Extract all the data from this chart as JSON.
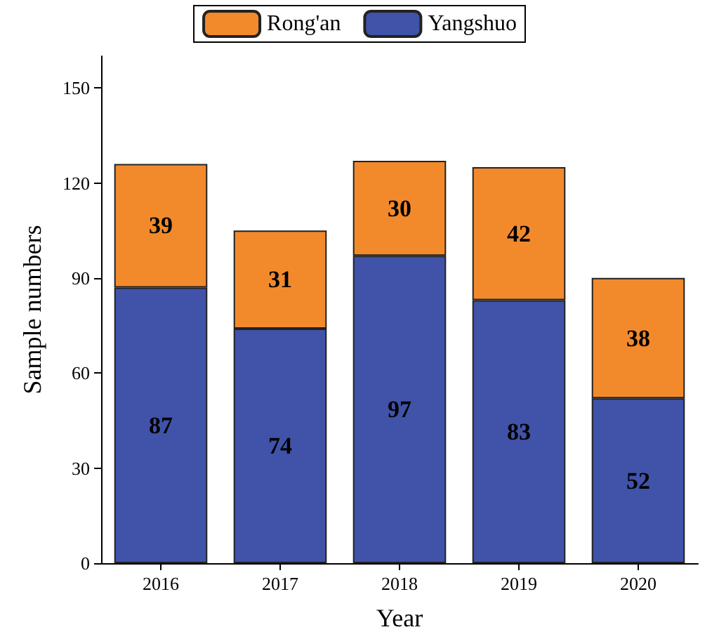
{
  "chart_data": {
    "type": "bar",
    "xlabel": "Year",
    "ylabel": "Sample numbers",
    "categories": [
      "2016",
      "2017",
      "2018",
      "2019",
      "2020"
    ],
    "series": [
      {
        "name": "Yangshuo",
        "color": "#4053a8",
        "values": [
          87,
          74,
          97,
          83,
          52
        ]
      },
      {
        "name": "Rong'an",
        "color": "#f28a2c",
        "values": [
          39,
          31,
          30,
          42,
          38
        ]
      }
    ],
    "stacked": true,
    "data_labels": true,
    "legend": "top",
    "grid": false,
    "ylim": [
      0,
      160
    ],
    "yticks": [
      0,
      30,
      60,
      90,
      120,
      150
    ]
  }
}
